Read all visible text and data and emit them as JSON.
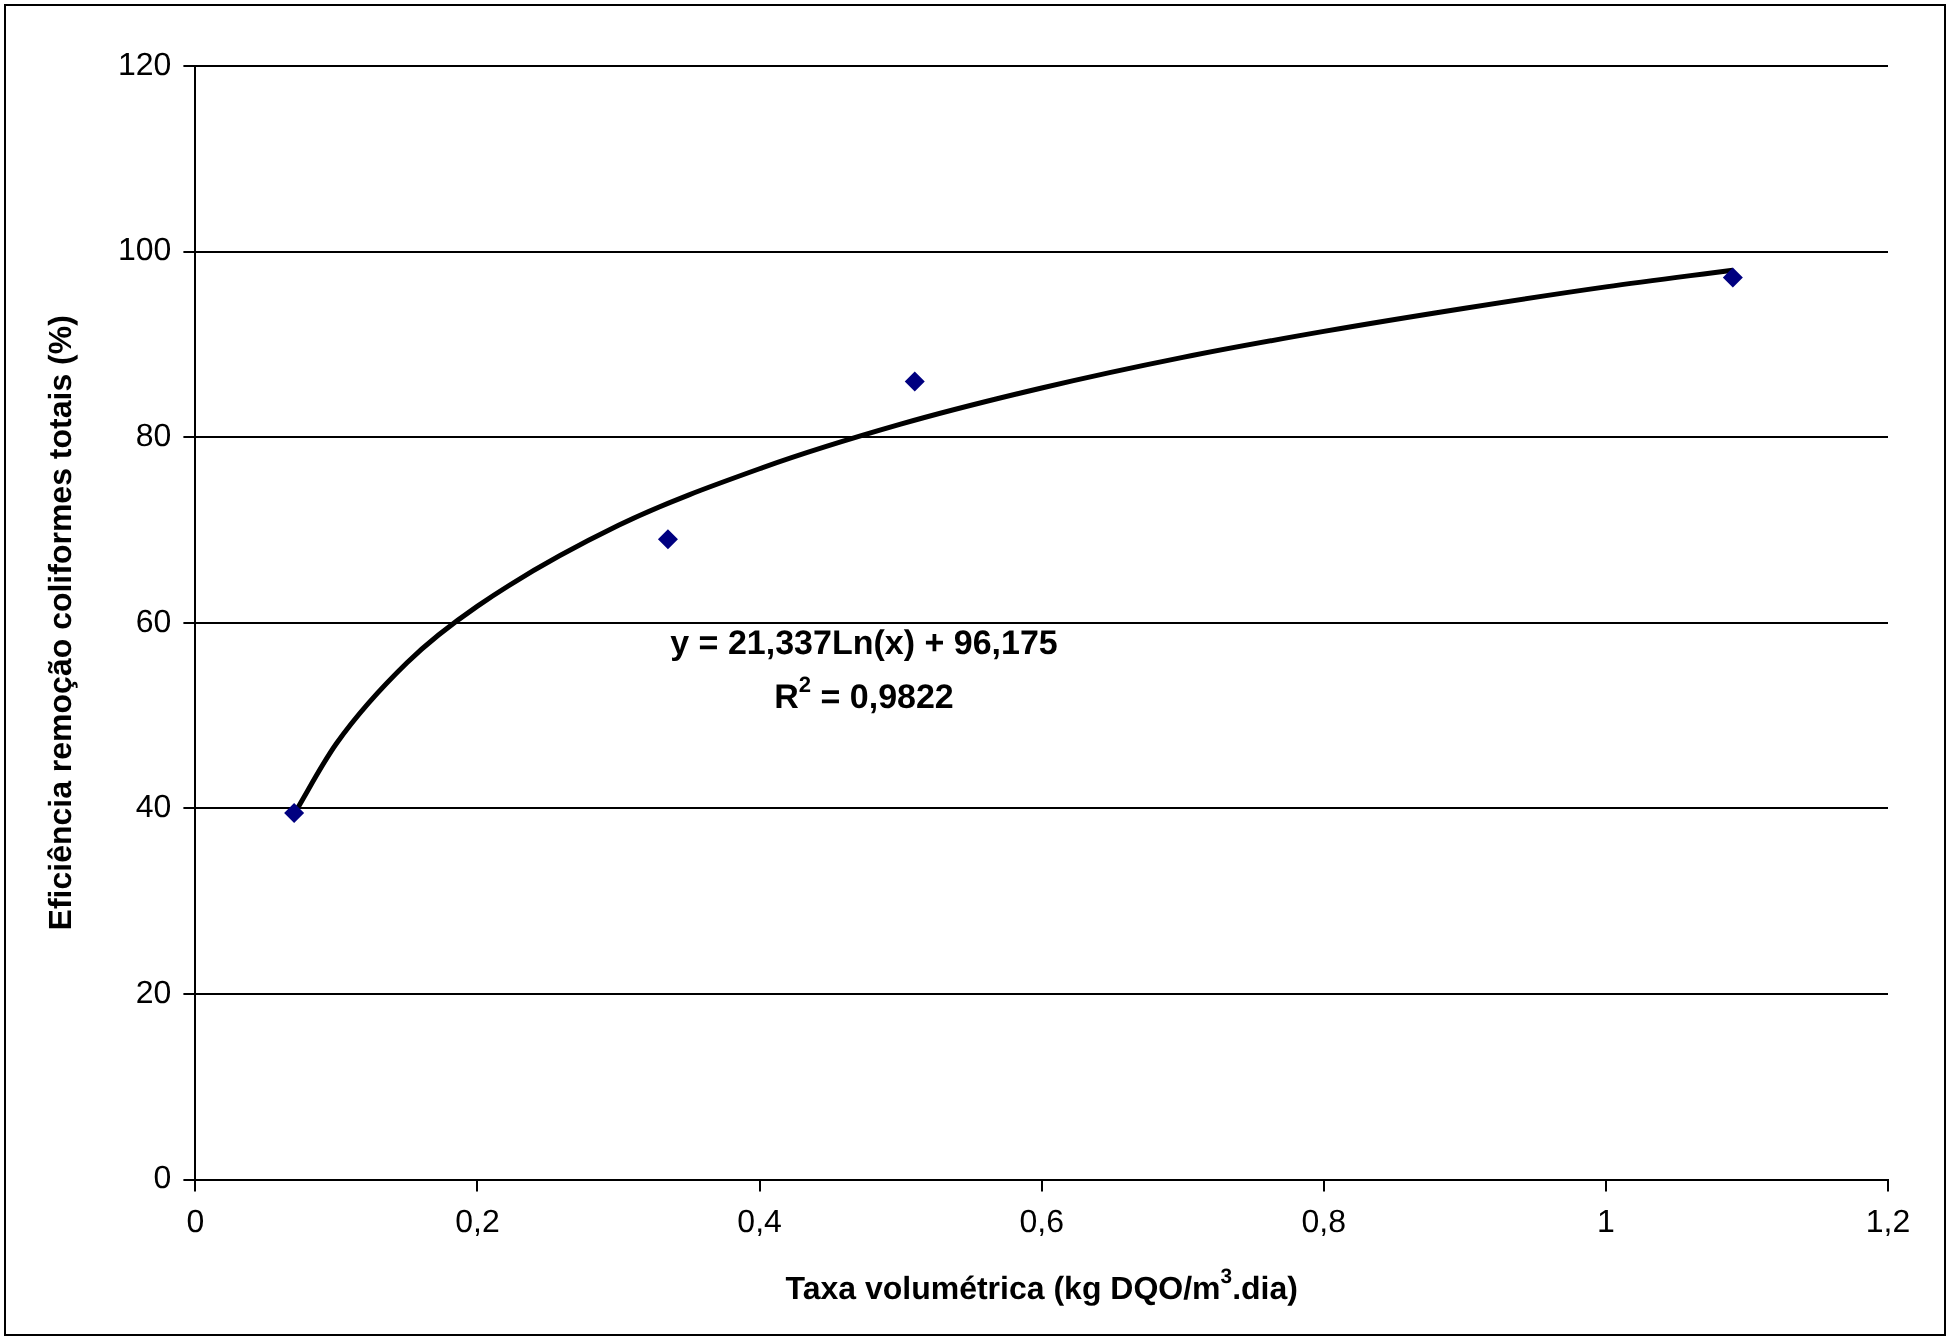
{
  "chart_data": {
    "type": "scatter",
    "xlabel": "Taxa volumétrica (kg DQO/m$^{3}$.dia)",
    "ylabel": "Eficiência remoção coliformes totais (%)",
    "series": [
      {
        "color": "#000080",
        "marker": "diamond",
        "x": [
          0.07,
          0.335,
          0.51,
          1.09
        ],
        "values": [
          39.5,
          69,
          86,
          97.2
        ]
      },
      {
        "type": "line",
        "color": "#000000",
        "marker": "none",
        "line_style": "solid",
        "x": [
          0.07,
          0.1,
          0.15,
          0.2,
          0.3,
          0.4,
          0.5,
          0.6,
          0.7,
          0.8,
          0.9,
          1.0,
          1.09
        ],
        "values": [
          39.4,
          47.0,
          55.7,
          61.8,
          70.5,
          76.6,
          81.4,
          85.3,
          88.6,
          91.4,
          93.9,
          96.2,
          98.0
        ]
      }
    ],
    "annotations": [
      "y = 21,337Ln(x) + 96,175",
      "R$^{2}$ = 0,9822"
    ],
    "xlim": [
      0,
      1.2
    ],
    "xticks": [
      0,
      {
        "value": 0.2,
        "label": "0,2"
      },
      {
        "value": 0.4,
        "label": "0,4"
      },
      {
        "value": 0.6,
        "label": "0,6"
      },
      {
        "value": 0.8,
        "label": "0,8"
      },
      1,
      {
        "value": 1.2,
        "label": "1,2"
      }
    ],
    "ylim": [
      0,
      120
    ],
    "yticks": [
      0,
      20,
      40,
      60,
      80,
      100,
      120
    ],
    "grid": "y",
    "legend": false
  }
}
